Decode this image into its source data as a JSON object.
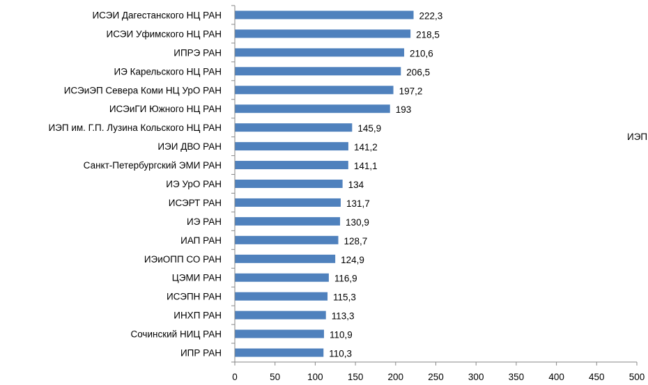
{
  "chart_data": {
    "type": "bar",
    "orientation": "horizontal",
    "categories": [
      "ИСЭИ Дагестанского НЦ РАН",
      "ИСЭИ Уфимского НЦ РАН",
      "ИПРЭ РАН",
      "ИЭ Карельского НЦ РАН",
      "ИСЭиЭП Севера Коми НЦ УрО РАН",
      "ИСЭиГИ Южного НЦ РАН",
      "ИЭП им. Г.П. Лузина Кольского НЦ РАН",
      "ИЭИ ДВО РАН",
      "Санкт-Петербургский ЭМИ РАН",
      "ИЭ УрО РАН",
      "ИСЭРТ РАН",
      "ИЭ РАН",
      "ИАП РАН",
      "ИЭиОПП СО РАН",
      "ЦЭМИ РАН",
      "ИСЭПН РАН",
      "ИНХП РАН",
      "Сочинский НИЦ РАН",
      "ИПР РАН"
    ],
    "values": [
      222.3,
      218.5,
      210.6,
      206.5,
      197.2,
      193,
      145.9,
      141.2,
      141.1,
      134,
      131.7,
      130.9,
      128.7,
      124.9,
      116.9,
      115.3,
      113.3,
      110.9,
      110.3
    ],
    "value_labels": [
      "222,3",
      "218,5",
      "210,6",
      "206,5",
      "197,2",
      "193",
      "145,9",
      "141,2",
      "141,1",
      "134",
      "131,7",
      "130,9",
      "128,7",
      "124,9",
      "116,9",
      "115,3",
      "113,3",
      "110,9",
      "110,3"
    ],
    "xticks": [
      "0",
      "50",
      "100",
      "150",
      "200",
      "250",
      "300",
      "350",
      "400",
      "450",
      "500"
    ],
    "xlim": [
      0,
      500
    ],
    "title": "",
    "xlabel": "",
    "ylabel": "",
    "grid": false,
    "bar_color": "#4f81bd",
    "side_text": "ИЭП"
  }
}
